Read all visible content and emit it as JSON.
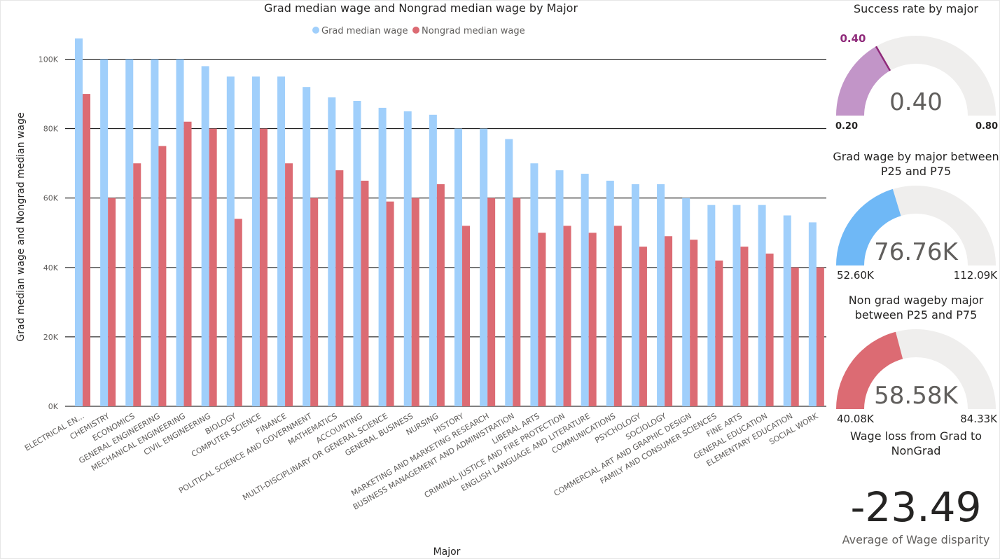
{
  "colors": {
    "grad": "#a0cffb",
    "nongrad": "#dc6b73",
    "success_fill": "#c295c8",
    "success_needle": "#8f2a7a",
    "grad_gauge_fill": "#6fb8f6",
    "nongrad_gauge_fill": "#dc6b73",
    "gauge_track": "#efeeed",
    "gridline": "#000000"
  },
  "chart_data": {
    "type": "bar",
    "title": "Grad median wage and Nongrad median wage by Major",
    "xlabel": "Major",
    "ylabel": "Grad median wage and Nongrad median wage",
    "ylim": [
      0,
      110000
    ],
    "yticks": [
      0,
      20000,
      40000,
      60000,
      80000,
      100000
    ],
    "ytick_labels": [
      "0K",
      "20K",
      "40K",
      "60K",
      "80K",
      "100K"
    ],
    "grid": true,
    "legend_position": "top-center",
    "categories": [
      "ELECTRICAL EN...",
      "CHEMISTRY",
      "ECONOMICS",
      "GENERAL ENGINEERING",
      "MECHANICAL ENGINEERING",
      "CIVIL ENGINEERING",
      "BIOLOGY",
      "COMPUTER SCIENCE",
      "FINANCE",
      "POLITICAL SCIENCE AND GOVERNMENT",
      "MATHEMATICS",
      "ACCOUNTING",
      "MULTI-DISCIPLINARY OR GENERAL SCIENCE",
      "GENERAL BUSINESS",
      "NURSING",
      "HISTORY",
      "MARKETING AND MARKETING RESEARCH",
      "BUSINESS MANAGEMENT AND ADMINISTRATION",
      "LIBERAL ARTS",
      "CRIMINAL JUSTICE AND FIRE PROTECTION",
      "ENGLISH LANGUAGE AND LITERATURE",
      "COMMUNICATIONS",
      "PSYCHOLOGY",
      "SOCIOLOGY",
      "COMMERCIAL ART AND GRAPHIC DESIGN",
      "FAMILY AND CONSUMER SCIENCES",
      "FINE ARTS",
      "GENERAL EDUCATION",
      "ELEMENTARY EDUCATION",
      "SOCIAL WORK"
    ],
    "series": [
      {
        "name": "Grad median wage",
        "values": [
          106000,
          100000,
          100000,
          100000,
          100000,
          98000,
          95000,
          95000,
          95000,
          92000,
          89000,
          88000,
          86000,
          85000,
          84000,
          80000,
          80000,
          77000,
          70000,
          68000,
          67000,
          65000,
          64000,
          64000,
          60000,
          58000,
          58000,
          58000,
          55000,
          53000
        ]
      },
      {
        "name": "Nongrad median wage",
        "values": [
          90000,
          60000,
          70000,
          75000,
          82000,
          80000,
          54000,
          80000,
          70000,
          60000,
          68000,
          65000,
          59000,
          60000,
          64000,
          52000,
          60000,
          60000,
          50000,
          52000,
          50000,
          52000,
          46000,
          49000,
          48000,
          42000,
          46000,
          44000,
          40000,
          40000
        ]
      }
    ]
  },
  "gauges": [
    {
      "title": "Success rate by major",
      "value": 0.4,
      "min": 0.2,
      "max": 0.8,
      "value_label": "0.40",
      "min_label": "0.20",
      "max_label": "0.80",
      "target_label": "0.40",
      "target": 0.4
    },
    {
      "title": "Grad wage by major between P25 and P75",
      "value": 76760,
      "min": 52600,
      "max": 112090,
      "value_label": "76.76K",
      "min_label": "52.60K",
      "max_label": "112.09K"
    },
    {
      "title": "Non grad wageby major between P25 and P75",
      "value": 58580,
      "min": 40080,
      "max": 84330,
      "value_label": "58.58K",
      "min_label": "40.08K",
      "max_label": "84.33K"
    }
  ],
  "kpi": {
    "title": "Wage loss from Grad to NonGrad",
    "value": "-23.49",
    "caption": "Average of Wage disparity"
  }
}
